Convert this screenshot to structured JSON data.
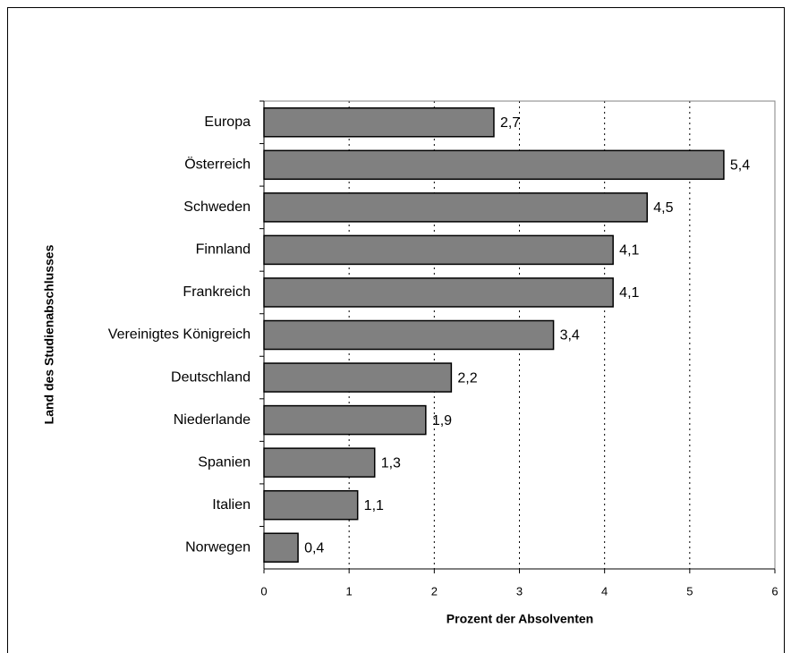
{
  "chart_data": {
    "type": "bar",
    "orientation": "horizontal",
    "categories": [
      "Europa",
      "Österreich",
      "Schweden",
      "Finnland",
      "Frankreich",
      "Vereinigtes Königreich",
      "Deutschland",
      "Niederlande",
      "Spanien",
      "Italien",
      "Norwegen"
    ],
    "values": [
      2.7,
      5.4,
      4.5,
      4.1,
      4.1,
      3.4,
      2.2,
      1.9,
      1.3,
      1.1,
      0.4
    ],
    "value_labels": [
      "2,7",
      "5,4",
      "4,5",
      "4,1",
      "4,1",
      "3,4",
      "2,2",
      "1,9",
      "1,3",
      "1,1",
      "0,4"
    ],
    "color": "#808080",
    "xlim": [
      0,
      6
    ],
    "xticks": [
      0,
      1,
      2,
      3,
      4,
      5,
      6
    ],
    "grid": true,
    "xlabel": "Prozent der Absolventen",
    "ylabel": "Land des Studienabschlusses"
  }
}
